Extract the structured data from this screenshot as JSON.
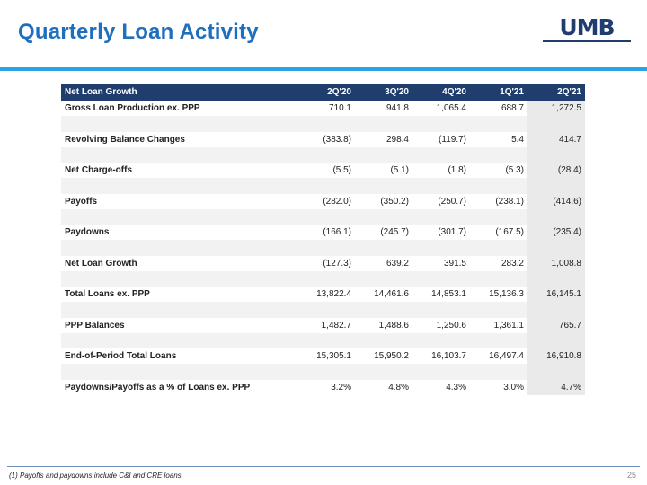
{
  "title": "Quarterly Loan Activity",
  "logo": {
    "text": "UMB",
    "color": "#1f3d6d"
  },
  "colors": {
    "title": "#1f6fbf",
    "accent_rule": "#29a3e1",
    "header_bg": "#1f3d6d"
  },
  "table": {
    "header": [
      "Net Loan Growth",
      "2Q'20",
      "3Q'20",
      "4Q'20",
      "1Q'21",
      "2Q'21"
    ],
    "rows": [
      [
        "Gross Loan Production ex. PPP",
        "710.1",
        "941.8",
        "1,065.4",
        "688.7",
        "1,272.5"
      ],
      [
        "Revolving Balance Changes",
        "(383.8)",
        "298.4",
        "(119.7)",
        "5.4",
        "414.7"
      ],
      [
        "Net Charge-offs",
        "(5.5)",
        "(5.1)",
        "(1.8)",
        "(5.3)",
        "(28.4)"
      ],
      [
        "Payoffs",
        "(282.0)",
        "(350.2)",
        "(250.7)",
        "(238.1)",
        "(414.6)"
      ],
      [
        "Paydowns",
        "(166.1)",
        "(245.7)",
        "(301.7)",
        "(167.5)",
        "(235.4)"
      ],
      [
        "Net Loan Growth",
        "(127.3)",
        "639.2",
        "391.5",
        "283.2",
        "1,008.8"
      ],
      [
        "Total Loans ex. PPP",
        "13,822.4",
        "14,461.6",
        "14,853.1",
        "15,136.3",
        "16,145.1"
      ],
      [
        "PPP Balances",
        "1,482.7",
        "1,488.6",
        "1,250.6",
        "1,361.1",
        "765.7"
      ],
      [
        "End-of-Period Total Loans",
        "15,305.1",
        "15,950.2",
        "16,103.7",
        "16,497.4",
        "16,910.8"
      ],
      [
        "Paydowns/Payoffs as a % of Loans ex. PPP",
        "3.2%",
        "4.8%",
        "4.3%",
        "3.0%",
        "4.7%"
      ]
    ]
  },
  "footnote": "(1) Payoffs and paydowns include C&I and CRE loans.",
  "page_number": "25"
}
